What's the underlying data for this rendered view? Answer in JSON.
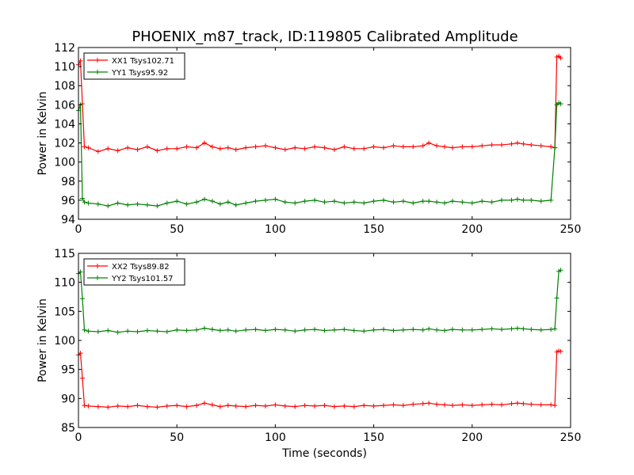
{
  "title": "PHOENIX_m87_track, ID:119805 Calibrated Amplitude",
  "chart_data": [
    {
      "type": "line",
      "title": "PHOENIX_m87_track, ID:119805 Calibrated Amplitude",
      "xlabel": "",
      "ylabel": "Power in Kelvin",
      "xlim": [
        0,
        250
      ],
      "ylim": [
        94,
        112
      ],
      "xticks": [
        0,
        50,
        100,
        150,
        200,
        250
      ],
      "yticks": [
        94,
        96,
        98,
        100,
        102,
        104,
        106,
        108,
        110,
        112
      ],
      "grid": false,
      "legend_position": "top-left",
      "series": [
        {
          "name": "XX1 Tsys102.71",
          "color": "#ff0000",
          "marker": "+",
          "x": [
            0,
            1,
            2,
            3,
            5,
            10,
            15,
            20,
            25,
            30,
            35,
            40,
            45,
            50,
            55,
            60,
            64,
            68,
            72,
            76,
            80,
            85,
            90,
            95,
            100,
            105,
            110,
            115,
            120,
            125,
            130,
            135,
            140,
            145,
            150,
            155,
            160,
            165,
            170,
            175,
            178,
            182,
            186,
            190,
            195,
            200,
            205,
            210,
            215,
            220,
            223,
            226,
            230,
            235,
            240,
            242,
            243,
            244,
            245
          ],
          "y": [
            110.2,
            110.6,
            106.1,
            101.6,
            101.5,
            101.1,
            101.4,
            101.2,
            101.5,
            101.3,
            101.6,
            101.2,
            101.4,
            101.4,
            101.6,
            101.5,
            102.0,
            101.6,
            101.4,
            101.5,
            101.3,
            101.5,
            101.6,
            101.7,
            101.5,
            101.3,
            101.5,
            101.4,
            101.6,
            101.5,
            101.3,
            101.6,
            101.4,
            101.4,
            101.6,
            101.5,
            101.7,
            101.6,
            101.6,
            101.7,
            102.0,
            101.7,
            101.6,
            101.5,
            101.6,
            101.6,
            101.7,
            101.8,
            101.8,
            101.9,
            102.0,
            101.9,
            101.8,
            101.7,
            101.6,
            101.5,
            111.0,
            111.1,
            110.9
          ]
        },
        {
          "name": "YY1 Tsys95.92",
          "color": "#008000",
          "marker": "+",
          "x": [
            0,
            1,
            2,
            3,
            5,
            10,
            15,
            20,
            25,
            30,
            35,
            40,
            45,
            50,
            55,
            60,
            64,
            68,
            72,
            76,
            80,
            85,
            90,
            95,
            100,
            105,
            110,
            115,
            120,
            125,
            130,
            135,
            140,
            145,
            150,
            155,
            160,
            165,
            170,
            175,
            178,
            182,
            186,
            190,
            195,
            200,
            205,
            210,
            215,
            220,
            223,
            226,
            230,
            235,
            240,
            242,
            243,
            244,
            245
          ],
          "y": [
            105.4,
            106.0,
            96.2,
            95.8,
            95.7,
            95.6,
            95.4,
            95.7,
            95.5,
            95.6,
            95.5,
            95.4,
            95.7,
            95.9,
            95.6,
            95.8,
            96.1,
            95.9,
            95.6,
            95.8,
            95.5,
            95.7,
            95.9,
            96.0,
            96.1,
            95.8,
            95.7,
            95.9,
            96.0,
            95.8,
            95.9,
            95.7,
            95.8,
            95.7,
            95.9,
            96.0,
            95.8,
            95.9,
            95.7,
            95.9,
            95.9,
            95.8,
            95.7,
            95.9,
            95.8,
            95.7,
            95.9,
            95.8,
            96.0,
            96.0,
            96.1,
            96.0,
            96.0,
            95.9,
            96.0,
            101.5,
            106.0,
            106.2,
            106.1
          ]
        }
      ]
    },
    {
      "type": "line",
      "title": "",
      "xlabel": "Time (seconds)",
      "ylabel": "Power in Kelvin",
      "xlim": [
        0,
        250
      ],
      "ylim": [
        85,
        115
      ],
      "xticks": [
        0,
        50,
        100,
        150,
        200,
        250
      ],
      "yticks": [
        85,
        90,
        95,
        100,
        105,
        110,
        115
      ],
      "grid": false,
      "legend_position": "top-left",
      "series": [
        {
          "name": "XX2 Tsys89.82",
          "color": "#ff0000",
          "marker": "+",
          "x": [
            0,
            1,
            2,
            3,
            5,
            10,
            15,
            20,
            25,
            30,
            35,
            40,
            45,
            50,
            55,
            60,
            64,
            68,
            72,
            76,
            80,
            85,
            90,
            95,
            100,
            105,
            110,
            115,
            120,
            125,
            130,
            135,
            140,
            145,
            150,
            155,
            160,
            165,
            170,
            175,
            178,
            182,
            186,
            190,
            195,
            200,
            205,
            210,
            215,
            220,
            223,
            226,
            230,
            235,
            240,
            242,
            243,
            244,
            245
          ],
          "y": [
            97.5,
            97.8,
            93.5,
            88.8,
            88.7,
            88.6,
            88.5,
            88.7,
            88.6,
            88.8,
            88.6,
            88.5,
            88.7,
            88.8,
            88.6,
            88.8,
            89.2,
            88.9,
            88.6,
            88.8,
            88.7,
            88.6,
            88.8,
            88.7,
            88.9,
            88.7,
            88.6,
            88.8,
            88.7,
            88.8,
            88.6,
            88.7,
            88.6,
            88.8,
            88.7,
            88.8,
            88.9,
            88.8,
            89.0,
            89.1,
            89.2,
            89.0,
            88.9,
            88.8,
            88.9,
            88.8,
            88.9,
            89.0,
            88.9,
            89.1,
            89.2,
            89.1,
            89.0,
            88.9,
            88.9,
            88.8,
            98.0,
            98.2,
            98.1
          ]
        },
        {
          "name": "YY2 Tsys101.57",
          "color": "#008000",
          "marker": "+",
          "x": [
            0,
            1,
            2,
            3,
            5,
            10,
            15,
            20,
            25,
            30,
            35,
            40,
            45,
            50,
            55,
            60,
            64,
            68,
            72,
            76,
            80,
            85,
            90,
            95,
            100,
            105,
            110,
            115,
            120,
            125,
            130,
            135,
            140,
            145,
            150,
            155,
            160,
            165,
            170,
            175,
            178,
            182,
            186,
            190,
            195,
            200,
            205,
            210,
            215,
            220,
            223,
            226,
            230,
            235,
            240,
            242,
            243,
            244,
            245
          ],
          "y": [
            111.5,
            111.8,
            107.2,
            101.8,
            101.6,
            101.5,
            101.7,
            101.4,
            101.6,
            101.5,
            101.7,
            101.6,
            101.5,
            101.8,
            101.7,
            101.8,
            102.1,
            101.9,
            101.7,
            101.8,
            101.6,
            101.8,
            101.9,
            101.7,
            101.9,
            101.8,
            101.6,
            101.8,
            101.9,
            101.7,
            101.8,
            101.9,
            101.7,
            101.6,
            101.8,
            101.9,
            101.7,
            101.8,
            101.9,
            101.8,
            102.0,
            101.8,
            101.7,
            101.9,
            101.8,
            101.8,
            101.9,
            102.0,
            101.9,
            102.0,
            102.1,
            102.0,
            101.9,
            101.8,
            101.9,
            102.0,
            107.3,
            111.9,
            112.1
          ]
        }
      ]
    }
  ]
}
